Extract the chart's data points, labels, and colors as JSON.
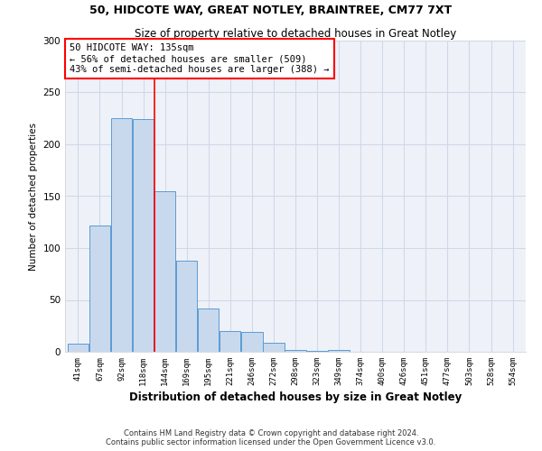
{
  "title1": "50, HIDCOTE WAY, GREAT NOTLEY, BRAINTREE, CM77 7XT",
  "title2": "Size of property relative to detached houses in Great Notley",
  "xlabel": "Distribution of detached houses by size in Great Notley",
  "ylabel": "Number of detached properties",
  "bin_labels": [
    "41sqm",
    "67sqm",
    "92sqm",
    "118sqm",
    "144sqm",
    "169sqm",
    "195sqm",
    "221sqm",
    "246sqm",
    "272sqm",
    "298sqm",
    "323sqm",
    "349sqm",
    "374sqm",
    "400sqm",
    "426sqm",
    "451sqm",
    "477sqm",
    "503sqm",
    "528sqm",
    "554sqm"
  ],
  "bar_values": [
    8,
    122,
    225,
    224,
    155,
    88,
    42,
    20,
    19,
    9,
    2,
    1,
    2,
    0,
    0,
    0,
    0,
    0,
    0,
    0,
    0
  ],
  "bar_color": "#c8d9ed",
  "bar_edge_color": "#5b9bd5",
  "annotation_text": "50 HIDCOTE WAY: 135sqm\n← 56% of detached houses are smaller (509)\n43% of semi-detached houses are larger (388) →",
  "annotation_box_color": "white",
  "annotation_box_edge_color": "red",
  "red_line_color": "red",
  "grid_color": "#d0d8e8",
  "ax_bg_color": "#eef2f8",
  "background_color": "white",
  "footer1": "Contains HM Land Registry data © Crown copyright and database right 2024.",
  "footer2": "Contains public sector information licensed under the Open Government Licence v3.0.",
  "ylim": [
    0,
    300
  ],
  "yticks": [
    0,
    50,
    100,
    150,
    200,
    250,
    300
  ]
}
